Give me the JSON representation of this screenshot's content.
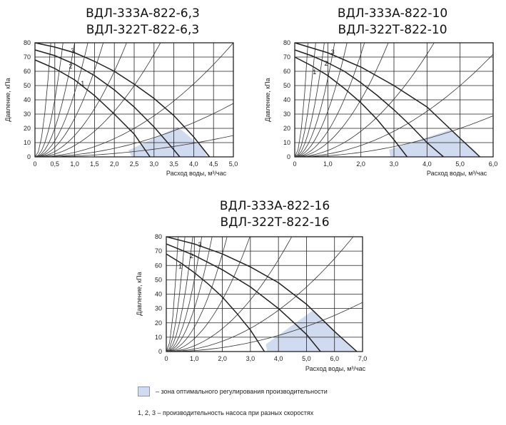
{
  "chart_data": [
    {
      "type": "line",
      "title_lines": [
        "ВДЛ-333А-822-6,3",
        "ВДЛ-322Т-822-6,3"
      ],
      "xlabel": "Расход воды, м³/час",
      "ylabel": "Давление, кПа",
      "xlim": [
        0,
        5
      ],
      "ylim": [
        0,
        80
      ],
      "x_ticks": [
        0,
        0.5,
        1,
        1.5,
        2,
        2.5,
        3,
        3.5,
        4,
        4.5,
        5
      ],
      "x_tick_labels": [
        "0",
        "0,5",
        "1,0",
        "1,5",
        "2,0",
        "2,5",
        "3,0",
        "3,5",
        "4,0",
        "4,5",
        "5,0"
      ],
      "y_ticks": [
        0,
        10,
        20,
        30,
        40,
        50,
        60,
        70,
        80
      ],
      "y_tick_labels": [
        "0",
        "10",
        "20",
        "30",
        "40",
        "50",
        "60",
        "70",
        "80"
      ],
      "grid": true,
      "pump_curves": [
        {
          "name": "1",
          "label_at": [
            1.2,
            50
          ],
          "points": [
            [
              0,
              68
            ],
            [
              0.5,
              62
            ],
            [
              1,
              54
            ],
            [
              1.5,
              43
            ],
            [
              2,
              30
            ],
            [
              2.5,
              16
            ],
            [
              2.9,
              0
            ]
          ]
        },
        {
          "name": "2",
          "label_at": [
            0.9,
            62
          ],
          "points": [
            [
              0,
              75
            ],
            [
              0.5,
              71
            ],
            [
              1,
              65
            ],
            [
              1.5,
              57
            ],
            [
              2,
              47
            ],
            [
              2.5,
              35
            ],
            [
              3,
              21
            ],
            [
              3.5,
              5
            ],
            [
              3.65,
              0
            ]
          ]
        },
        {
          "name": "3",
          "label_at": [
            0.95,
            73
          ],
          "points": [
            [
              0,
              80
            ],
            [
              0.5,
              77
            ],
            [
              1,
              73
            ],
            [
              1.5,
              67
            ],
            [
              2,
              60
            ],
            [
              2.5,
              51
            ],
            [
              3,
              41
            ],
            [
              3.5,
              29
            ],
            [
              4,
              14
            ],
            [
              4.4,
              0
            ]
          ]
        }
      ],
      "resistance_k": [
        500,
        160,
        80,
        45,
        27,
        15,
        8,
        3.2,
        1.5,
        0.6
      ],
      "optimal_zone": [
        [
          2.35,
          4.5
        ],
        [
          3.6,
          21
        ],
        [
          4.2,
          7
        ],
        [
          4.35,
          0
        ],
        [
          2.45,
          0
        ]
      ]
    },
    {
      "type": "line",
      "title_lines": [
        "ВДЛ-333А-822-10",
        "ВДЛ-322Т-822-10"
      ],
      "xlabel": "Расход воды, м³/час",
      "ylabel": "Давление, кПа",
      "xlim": [
        0,
        6
      ],
      "ylim": [
        0,
        80
      ],
      "x_ticks": [
        0,
        1,
        2,
        3,
        4,
        5,
        6
      ],
      "x_tick_labels": [
        "0",
        "1,0",
        "2,0",
        "3,0",
        "4,0",
        "5,0",
        "6,0"
      ],
      "y_ticks": [
        0,
        10,
        20,
        30,
        40,
        50,
        60,
        70,
        80
      ],
      "y_tick_labels": [
        "0",
        "10",
        "20",
        "30",
        "40",
        "50",
        "60",
        "70",
        "80"
      ],
      "grid": true,
      "pump_curves": [
        {
          "name": "1",
          "label_at": [
            0.6,
            58
          ],
          "points": [
            [
              0,
              70
            ],
            [
              0.5,
              64
            ],
            [
              1,
              57
            ],
            [
              1.5,
              48
            ],
            [
              2,
              38
            ],
            [
              2.5,
              26
            ],
            [
              3,
              12
            ],
            [
              3.4,
              0
            ]
          ]
        },
        {
          "name": "2",
          "label_at": [
            0.95,
            64
          ],
          "points": [
            [
              0,
              75
            ],
            [
              0.5,
              71
            ],
            [
              1,
              66
            ],
            [
              1.5,
              60
            ],
            [
              2,
              52
            ],
            [
              2.5,
              43
            ],
            [
              3,
              33
            ],
            [
              3.5,
              22
            ],
            [
              4,
              10
            ],
            [
              4.5,
              0
            ]
          ]
        },
        {
          "name": "3",
          "label_at": [
            1.15,
            72
          ],
          "points": [
            [
              0,
              80
            ],
            [
              1,
              73
            ],
            [
              2,
              63
            ],
            [
              3,
              50
            ],
            [
              4,
              35
            ],
            [
              4.5,
              24
            ],
            [
              5,
              13
            ],
            [
              5.6,
              0
            ]
          ]
        }
      ],
      "resistance_k": [
        500,
        200,
        100,
        55,
        32,
        18,
        10,
        4.5,
        2,
        0.8
      ],
      "optimal_zone": [
        [
          2.85,
          5
        ],
        [
          4.7,
          19
        ],
        [
          5.45,
          4.5
        ],
        [
          5.6,
          0
        ],
        [
          2.9,
          0
        ]
      ]
    },
    {
      "type": "line",
      "title_lines": [
        "ВДЛ-333А-822-16",
        "ВДЛ-322Т-822-16"
      ],
      "xlabel": "Расход воды, м³/час",
      "ylabel": "Давление, кПа",
      "xlim": [
        0,
        7
      ],
      "ylim": [
        0,
        80
      ],
      "x_ticks": [
        0,
        1,
        2,
        3,
        4,
        5,
        6,
        7
      ],
      "x_tick_labels": [
        "0",
        "1,0",
        "2,0",
        "3,0",
        "4,0",
        "5,0",
        "6,0",
        "7,0"
      ],
      "y_ticks": [
        0,
        10,
        20,
        30,
        40,
        50,
        60,
        70,
        80
      ],
      "y_tick_labels": [
        "0",
        "10",
        "20",
        "30",
        "40",
        "50",
        "60",
        "70",
        "80"
      ],
      "grid": true,
      "pump_curves": [
        {
          "name": "1",
          "label_at": [
            0.5,
            58
          ],
          "points": [
            [
              0,
              68
            ],
            [
              0.5,
              62
            ],
            [
              1,
              55
            ],
            [
              1.5,
              47
            ],
            [
              2,
              38
            ],
            [
              2.5,
              27
            ],
            [
              3,
              15
            ],
            [
              3.5,
              0
            ]
          ]
        },
        {
          "name": "2",
          "label_at": [
            0.9,
            65
          ],
          "points": [
            [
              0,
              75
            ],
            [
              0.5,
              71
            ],
            [
              1,
              67
            ],
            [
              2,
              57
            ],
            [
              3,
              45
            ],
            [
              4,
              30
            ],
            [
              4.5,
              21
            ],
            [
              5,
              12
            ],
            [
              5.5,
              0
            ]
          ]
        },
        {
          "name": "3",
          "label_at": [
            1.2,
            73
          ],
          "points": [
            [
              0,
              80
            ],
            [
              1,
              75
            ],
            [
              2,
              68
            ],
            [
              3,
              59
            ],
            [
              4,
              48
            ],
            [
              5,
              33
            ],
            [
              6,
              14
            ],
            [
              6.8,
              0
            ]
          ]
        }
      ],
      "resistance_k": [
        450,
        180,
        90,
        50,
        30,
        17,
        9,
        4,
        1.8,
        0.7
      ],
      "optimal_zone": [
        [
          3.55,
          5
        ],
        [
          5.25,
          29
        ],
        [
          6.3,
          9
        ],
        [
          6.8,
          0
        ],
        [
          3.6,
          0
        ]
      ]
    }
  ],
  "legend": {
    "zone_text": "– зона оптимального регулирования производительности",
    "speeds_text": "1, 2, 3 – производительность насоса при разных скоростях",
    "zone_color": "#d1dbf0"
  }
}
